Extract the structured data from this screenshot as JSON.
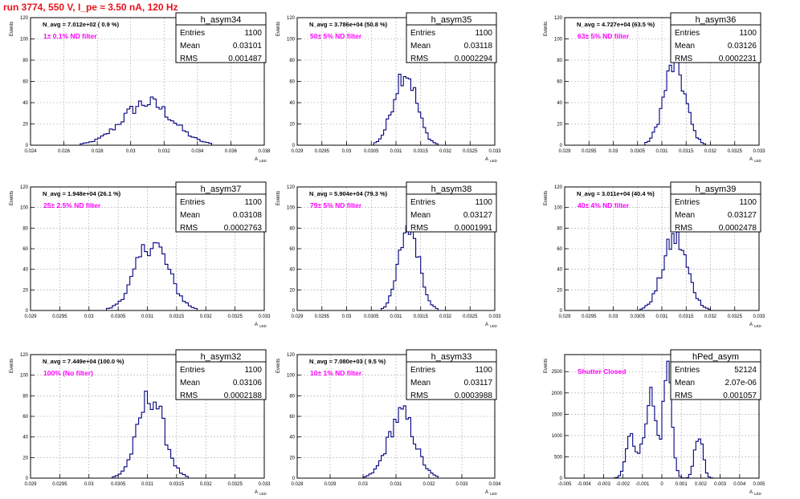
{
  "page_title": "run 3774,   550 V, I_pe ≈ 3.50 nA, 120 Hz",
  "colors": {
    "title": "#e8131c",
    "filter_label": "#ff00ff",
    "histogram": "#000080",
    "grid": "#aaaaaa",
    "axis": "#000000"
  },
  "axis_label_x": "A",
  "axis_label_x_sub": "LED",
  "axis_label_y": "Events",
  "stats_labels": {
    "entries": "Entries",
    "mean": "Mean",
    "rms": "RMS"
  },
  "chart_data": [
    {
      "type": "histogram",
      "name": "h_asym34",
      "stats": {
        "entries": "1100",
        "mean": "0.03101",
        "rms": "0.001487"
      },
      "navg": "N_avg = 7.012e+02 ( 0.9 %)",
      "filter": "1± 0.1% ND filter",
      "xlim": [
        0.024,
        0.038
      ],
      "ylim": [
        0,
        120
      ],
      "xticks": [
        "0.024",
        "0.026",
        "0.028",
        "0.03",
        "0.032",
        "0.034",
        "0.036",
        "0.038"
      ],
      "yticks": [
        "0",
        "20",
        "40",
        "60",
        "80",
        "100",
        "120"
      ],
      "dist": [
        {
          "mu": 0.031,
          "sigma": 0.0015,
          "amp": 40
        }
      ]
    },
    {
      "type": "histogram",
      "name": "h_asym35",
      "stats": {
        "entries": "1100",
        "mean": "0.03118",
        "rms": "0.0002294"
      },
      "navg": "N_avg = 3.786e+04 (50.8 %)",
      "filter": "50± 5% ND filter",
      "xlim": [
        0.029,
        0.033
      ],
      "ylim": [
        0,
        120
      ],
      "xticks": [
        "0.029",
        "0.0295",
        "0.03",
        "0.0305",
        "0.031",
        "0.0315",
        "0.032",
        "0.0325",
        "0.033"
      ],
      "yticks": [
        "0",
        "20",
        "40",
        "60",
        "80",
        "100",
        "120"
      ],
      "dist": [
        {
          "mu": 0.03118,
          "sigma": 0.00023,
          "amp": 70
        }
      ]
    },
    {
      "type": "histogram",
      "name": "h_asym36",
      "stats": {
        "entries": "1100",
        "mean": "0.03126",
        "rms": "0.0002231"
      },
      "navg": "N_avg = 4.727e+04 (63.5 %)",
      "filter": "63± 5% ND filter",
      "xlim": [
        0.029,
        0.033
      ],
      "ylim": [
        0,
        120
      ],
      "xticks": [
        "0.029",
        "0.0295",
        "0.03",
        "0.0305",
        "0.031",
        "0.0315",
        "0.032",
        "0.0325",
        "0.033"
      ],
      "yticks": [
        "0",
        "20",
        "40",
        "60",
        "80",
        "100",
        "120"
      ],
      "dist": [
        {
          "mu": 0.03126,
          "sigma": 0.00022,
          "amp": 76
        }
      ]
    },
    {
      "type": "histogram",
      "name": "h_asym37",
      "stats": {
        "entries": "1100",
        "mean": "0.03108",
        "rms": "0.0002763"
      },
      "navg": "N_avg = 1.948e+04 (26.1 %)",
      "filter": "25± 2.5% ND filter",
      "xlim": [
        0.029,
        0.033
      ],
      "ylim": [
        0,
        120
      ],
      "xticks": [
        "0.029",
        "0.0295",
        "0.03",
        "0.0305",
        "0.031",
        "0.0315",
        "0.032",
        "0.0325",
        "0.033"
      ],
      "yticks": [
        "0",
        "20",
        "40",
        "60",
        "80",
        "100",
        "120"
      ],
      "dist": [
        {
          "mu": 0.03108,
          "sigma": 0.00028,
          "amp": 66
        }
      ]
    },
    {
      "type": "histogram",
      "name": "h_asym38",
      "stats": {
        "entries": "1100",
        "mean": "0.03127",
        "rms": "0.0001991"
      },
      "navg": "N_avg = 5.904e+04 (79.3 %)",
      "filter": "79± 5% ND filter",
      "xlim": [
        0.029,
        0.033
      ],
      "ylim": [
        0,
        120
      ],
      "xticks": [
        "0.029",
        "0.0295",
        "0.03",
        "0.0305",
        "0.031",
        "0.0315",
        "0.032",
        "0.0325",
        "0.033"
      ],
      "yticks": [
        "0",
        "20",
        "40",
        "60",
        "80",
        "100",
        "120"
      ],
      "dist": [
        {
          "mu": 0.03127,
          "sigma": 0.0002,
          "amp": 85
        }
      ]
    },
    {
      "type": "histogram",
      "name": "h_asym39",
      "stats": {
        "entries": "1100",
        "mean": "0.03127",
        "rms": "0.0002478"
      },
      "navg": "N_avg = 3.011e+04 (40.4 %)",
      "filter": "40± 4% ND filter",
      "xlim": [
        0.029,
        0.033
      ],
      "ylim": [
        0,
        120
      ],
      "xticks": [
        "0.029",
        "0.0295",
        "0.03",
        "0.0305",
        "0.031",
        "0.0315",
        "0.032",
        "0.0325",
        "0.033"
      ],
      "yticks": [
        "0",
        "20",
        "40",
        "60",
        "80",
        "100",
        "120"
      ],
      "dist": [
        {
          "mu": 0.03127,
          "sigma": 0.00025,
          "amp": 70
        }
      ]
    },
    {
      "type": "histogram",
      "name": "h_asym32",
      "stats": {
        "entries": "1100",
        "mean": "0.03106",
        "rms": "0.0002188"
      },
      "navg": "N_avg = 7.449e+04 (100.0 %)",
      "filter": "100% (No filter)",
      "xlim": [
        0.029,
        0.033
      ],
      "ylim": [
        0,
        120
      ],
      "xticks": [
        "0.029",
        "0.0295",
        "0.03",
        "0.0305",
        "0.031",
        "0.0315",
        "0.032",
        "0.0325",
        "0.033"
      ],
      "yticks": [
        "0",
        "20",
        "40",
        "60",
        "80",
        "100",
        "120"
      ],
      "dist": [
        {
          "mu": 0.03106,
          "sigma": 0.00022,
          "amp": 80
        }
      ]
    },
    {
      "type": "histogram",
      "name": "h_asym33",
      "stats": {
        "entries": "1100",
        "mean": "0.03117",
        "rms": "0.0003988"
      },
      "navg": "N_avg = 7.080e+03 ( 9.5 %)",
      "filter": "10± 1% ND filter",
      "xlim": [
        0.028,
        0.034
      ],
      "ylim": [
        0,
        120
      ],
      "xticks": [
        "0.028",
        "0.029",
        "0.03",
        "0.031",
        "0.032",
        "0.033",
        "0.034"
      ],
      "yticks": [
        "0",
        "20",
        "40",
        "60",
        "80",
        "100",
        "120"
      ],
      "dist": [
        {
          "mu": 0.03117,
          "sigma": 0.0004,
          "amp": 62
        }
      ]
    },
    {
      "type": "histogram",
      "name": "hPed_asym",
      "stats": {
        "entries": "52124",
        "mean": "2.07e-06",
        "rms": "0.001057"
      },
      "navg": "",
      "filter": "Shutter Closed",
      "xlim": [
        -0.005,
        0.005
      ],
      "ylim": [
        0,
        2900
      ],
      "xticks": [
        "-0.005",
        "-0.004",
        "-0.003",
        "-0.002",
        "-0.001",
        "0",
        "0.001",
        "0.002",
        "0.003",
        "0.004",
        "0.005"
      ],
      "yticks": [
        "0",
        "500",
        "1000",
        "1500",
        "2000",
        "2500"
      ],
      "dist": [
        {
          "mu": -0.0016,
          "sigma": 0.00025,
          "amp": 1050
        },
        {
          "mu": -0.0006,
          "sigma": 0.0003,
          "amp": 1950
        },
        {
          "mu": 0.0003,
          "sigma": 0.00022,
          "amp": 2600
        },
        {
          "mu": 0.0019,
          "sigma": 0.0002,
          "amp": 1050
        }
      ]
    }
  ]
}
